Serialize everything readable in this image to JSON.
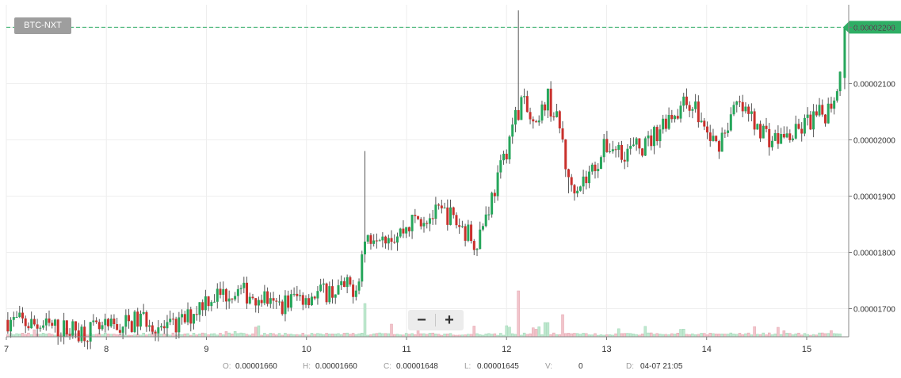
{
  "pair": "BTC-NXT",
  "zoom": {
    "minus": "−",
    "plus": "+"
  },
  "ohlc": {
    "o_label": "O:",
    "o_value": "0.00001660",
    "h_label": "H:",
    "h_value": "0.00001660",
    "c_label": "C:",
    "c_value": "0.00001648",
    "l_label": "L:",
    "l_value": "0.00001645",
    "v_label": "V:",
    "v_value": "0",
    "d_label": "D:",
    "d_value": "04-07 21:05"
  },
  "colors": {
    "up": "#26a65b",
    "down": "#c9302c",
    "up_vol": "#bfe8cf",
    "down_vol": "#f2c4cb",
    "grid": "#eeeeee",
    "current_price": "#2eae64"
  },
  "chart_data": {
    "type": "candlestick",
    "x_tick_labels": [
      "7",
      "8",
      "9",
      "10",
      "11",
      "12",
      "13",
      "14",
      "15"
    ],
    "y_tick_labels": [
      "0.00001700",
      "0.00001800",
      "0.00001900",
      "0.00002000",
      "0.00002100",
      "0.00002200"
    ],
    "ylim": [
      1.65e-05,
      2.24e-05
    ],
    "xlim": [
      7.0,
      15.42
    ],
    "current_price_label": "0.00002200",
    "current_price": 2.2e-05,
    "grid": true,
    "price_waypoints": [
      [
        7.0,
        1.68e-05
      ],
      [
        7.5,
        1.665e-05
      ],
      [
        7.8,
        1.66e-05
      ],
      [
        8.0,
        1.662e-05
      ],
      [
        8.4,
        1.683e-05
      ],
      [
        8.6,
        1.66e-05
      ],
      [
        8.8,
        1.68e-05
      ],
      [
        9.0,
        1.72e-05
      ],
      [
        9.3,
        1.73e-05
      ],
      [
        9.6,
        1.72e-05
      ],
      [
        9.65,
        1.7e-05
      ],
      [
        9.9,
        1.72e-05
      ],
      [
        10.2,
        1.73e-05
      ],
      [
        10.5,
        1.74e-05
      ],
      [
        10.58,
        1.82e-05
      ],
      [
        10.7,
        1.84e-05
      ],
      [
        10.9,
        1.83e-05
      ],
      [
        11.1,
        1.86e-05
      ],
      [
        11.4,
        1.87e-05
      ],
      [
        11.7,
        1.82e-05
      ],
      [
        11.8,
        1.87e-05
      ],
      [
        11.95,
        1.95e-05
      ],
      [
        12.05,
        2.02e-05
      ],
      [
        12.15,
        2.07e-05
      ],
      [
        12.3,
        2.01e-05
      ],
      [
        12.4,
        2.08e-05
      ],
      [
        12.55,
        2.01e-05
      ],
      [
        12.62,
        1.92e-05
      ],
      [
        12.8,
        1.93e-05
      ],
      [
        13.0,
        1.99e-05
      ],
      [
        13.2,
        1.98e-05
      ],
      [
        13.4,
        1.99e-05
      ],
      [
        13.6,
        2.04e-05
      ],
      [
        13.85,
        2.07e-05
      ],
      [
        14.0,
        2.01e-05
      ],
      [
        14.1,
        1.99e-05
      ],
      [
        14.3,
        2.06e-05
      ],
      [
        14.5,
        2.03e-05
      ],
      [
        14.65,
        2e-05
      ],
      [
        14.9,
        2.01e-05
      ],
      [
        15.0,
        2.03e-05
      ],
      [
        15.2,
        2.05e-05
      ],
      [
        15.3,
        2.09e-05
      ],
      [
        15.38,
        2.2e-05
      ]
    ],
    "spikes": [
      {
        "x": 10.58,
        "high": 1.98e-05
      },
      {
        "x": 12.12,
        "high": 2.23e-05
      },
      {
        "x": 12.62,
        "low": 1.905e-05
      },
      {
        "x": 11.7,
        "low": 1.81e-05
      }
    ],
    "volume_spikes": [
      {
        "x": 10.58,
        "h": 42,
        "up": true
      },
      {
        "x": 12.12,
        "h": 58,
        "up": false
      },
      {
        "x": 12.56,
        "h": 28,
        "up": false
      },
      {
        "x": 12.0,
        "h": 14,
        "up": true
      },
      {
        "x": 10.86,
        "h": 16,
        "up": false
      },
      {
        "x": 12.4,
        "h": 18,
        "up": true
      }
    ]
  }
}
